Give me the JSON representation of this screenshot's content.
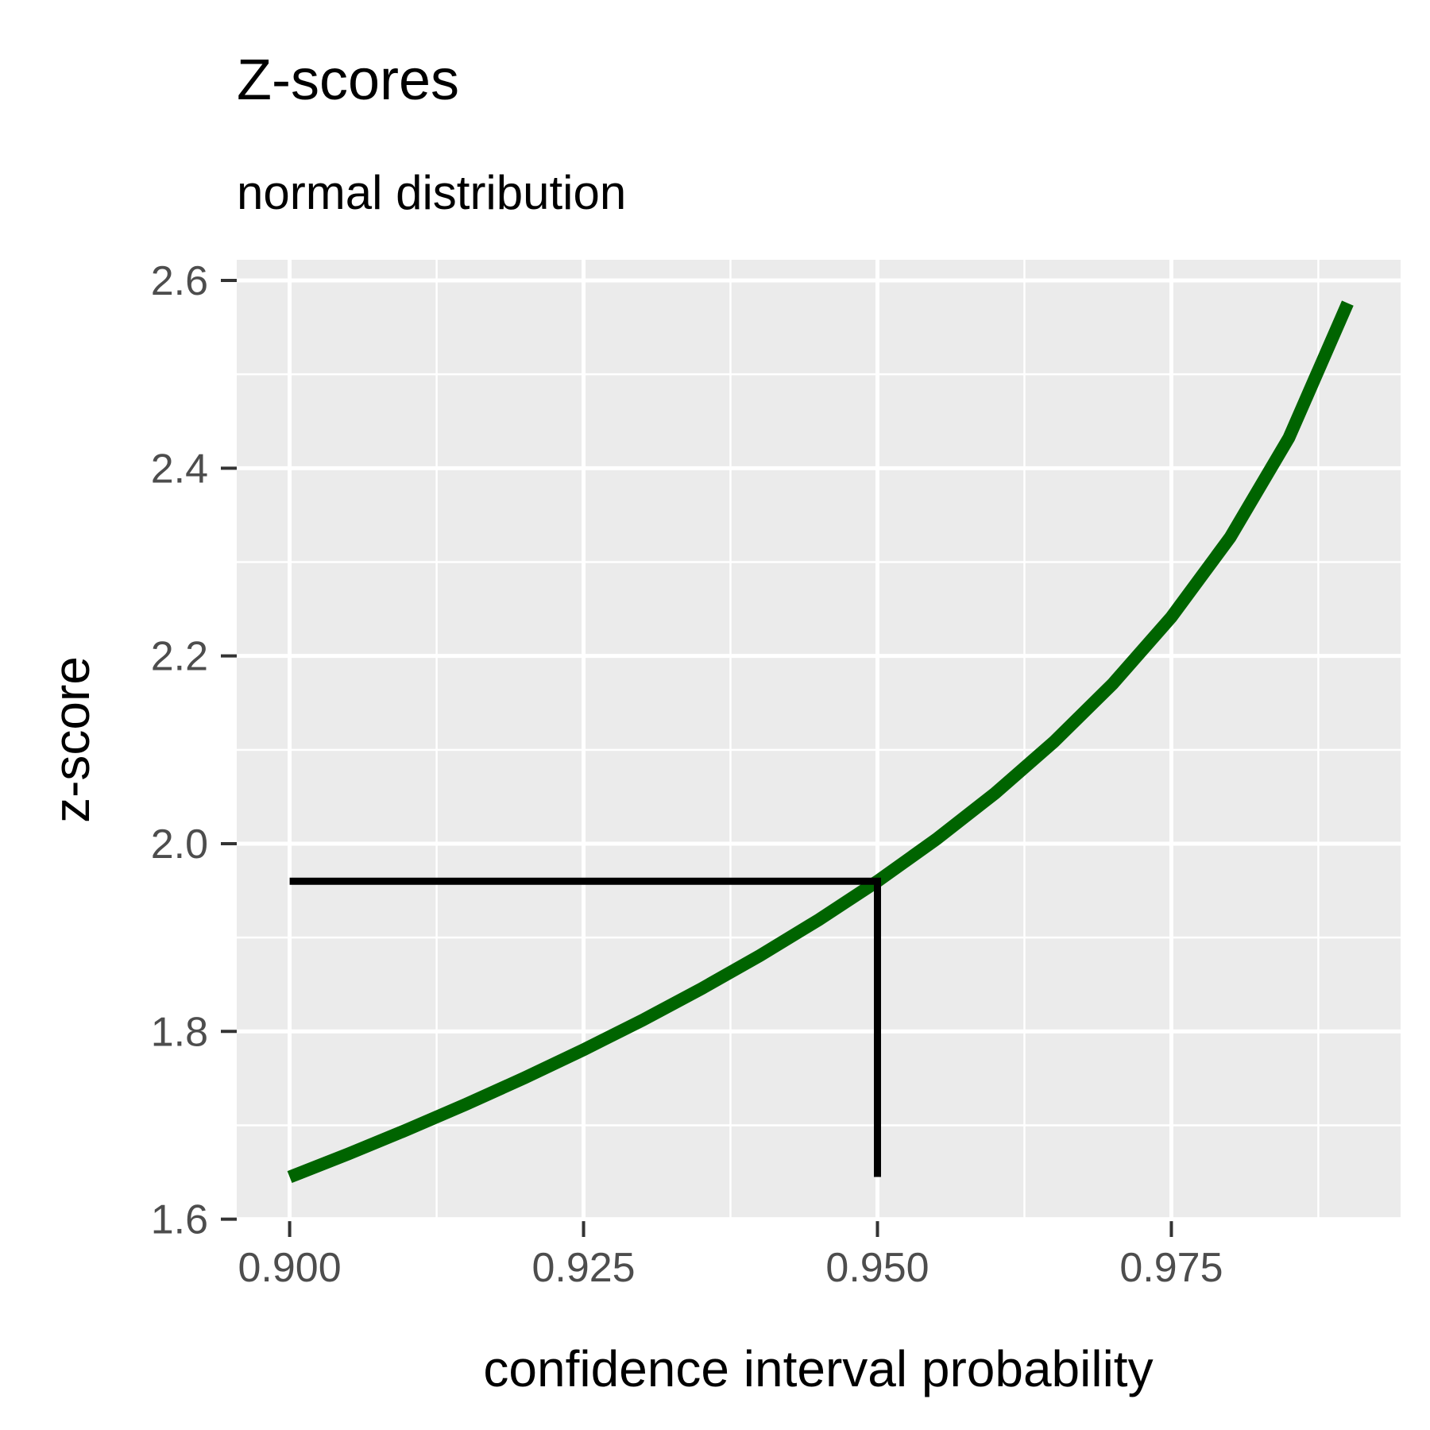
{
  "chart_data": {
    "type": "line",
    "title": "Z-scores",
    "subtitle": "normal distribution",
    "x_label": "confidence interval probability",
    "y_label": "z-score",
    "series": [
      {
        "color": "#006400",
        "x": [
          0.9,
          0.905,
          0.91,
          0.915,
          0.92,
          0.925,
          0.93,
          0.935,
          0.94,
          0.945,
          0.95,
          0.955,
          0.96,
          0.965,
          0.97,
          0.975,
          0.98,
          0.985,
          0.99
        ],
        "values": [
          1.6449,
          1.6696,
          1.6954,
          1.7224,
          1.7507,
          1.7805,
          1.8119,
          1.8453,
          1.8808,
          1.9189,
          1.96,
          2.0047,
          2.0537,
          2.1084,
          2.1701,
          2.2414,
          2.3263,
          2.4324,
          2.5758
        ]
      },
      {
        "color": "#000000",
        "x": [
          0.9,
          0.95,
          0.95
        ],
        "values": [
          1.96,
          1.96,
          1.645
        ]
      }
    ],
    "xlim": [
      0.8955,
      0.9945
    ],
    "ylim": [
      1.598,
      2.622
    ],
    "xticks": [
      {
        "value": 0.9,
        "label": "0.900"
      },
      {
        "value": 0.925,
        "label": "0.925"
      },
      {
        "value": 0.95,
        "label": "0.950"
      },
      {
        "value": 0.975,
        "label": "0.975"
      }
    ],
    "yticks": [
      1.6,
      1.8,
      {
        "value": 2,
        "label": "2.0"
      },
      2.2,
      2.4,
      2.6
    ],
    "x_minor_ticks": [
      0.9125,
      0.9375,
      0.9625,
      0.9875
    ],
    "y_minor_ticks": [
      1.7,
      1.9,
      2.1,
      2.3,
      2.5
    ],
    "grid": true,
    "panel_color": "#ebebeb"
  }
}
